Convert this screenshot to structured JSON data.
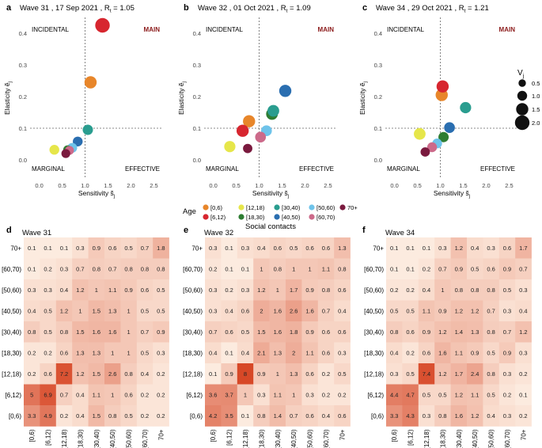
{
  "figure": {
    "social_contacts_title": "Social contacts",
    "age_legend_title": "Age",
    "size_legend_title_main": "V",
    "size_legend_title_sub": "j",
    "size_legend_values": [
      "0.5",
      "1.0",
      "1.5",
      "2.0"
    ],
    "age_groups": [
      "[0,6)",
      "[6,12)",
      "[12,18)",
      "[18,30)",
      "[30,40)",
      "[40,50)",
      "[50,60)",
      "[60,70)",
      "70+"
    ],
    "age_colors": [
      "#e8862a",
      "#d7262f",
      "#e6e64a",
      "#2e7d32",
      "#2a9d8f",
      "#2a6eb0",
      "#6ec3ea",
      "#cc6a8a",
      "#7a1a3e"
    ],
    "quadrant_labels": {
      "incidental": "INCIDENTAL",
      "main": "MAIN",
      "marginal": "MARGINAL",
      "effective": "EFFECTIVE"
    }
  },
  "chart_data": [
    {
      "type": "scatter",
      "panel_letter": "a",
      "wave_label": "Wave 31",
      "date": "17 Sep 2021",
      "r_label": "R",
      "r_sub": "t",
      "r_value": "= 1.05",
      "xlabel": "Sensitivity s̃",
      "xlabel_sub": "j",
      "ylabel": "Elasticity ẽ",
      "ylabel_sub": "j",
      "xlim": [
        -0.2,
        2.7
      ],
      "ylim": [
        -0.06,
        0.45
      ],
      "xticks": [
        "0.0",
        "0.5",
        "1.0",
        "1.5",
        "2.0",
        "2.5"
      ],
      "yticks": [
        "0.0",
        "0.1",
        "0.2",
        "0.3",
        "0.4"
      ],
      "threshold_x": 1.0,
      "threshold_y": 0.1,
      "points": [
        {
          "group": "[0,6)",
          "x": 1.12,
          "y": 0.245,
          "v": 1.5
        },
        {
          "group": "[6,12)",
          "x": 1.38,
          "y": 0.425,
          "v": 2.0
        },
        {
          "group": "[12,18)",
          "x": 0.33,
          "y": 0.032,
          "v": 1.0
        },
        {
          "group": "[18,30)",
          "x": 0.62,
          "y": 0.032,
          "v": 0.8
        },
        {
          "group": "[30,40)",
          "x": 1.06,
          "y": 0.095,
          "v": 1.1
        },
        {
          "group": "[40,50)",
          "x": 0.84,
          "y": 0.058,
          "v": 1.0
        },
        {
          "group": "[50,60)",
          "x": 0.72,
          "y": 0.038,
          "v": 1.0
        },
        {
          "group": "[60,70)",
          "x": 0.66,
          "y": 0.03,
          "v": 0.8
        },
        {
          "group": "70+",
          "x": 0.58,
          "y": 0.02,
          "v": 0.8
        }
      ]
    },
    {
      "type": "scatter",
      "panel_letter": "b",
      "wave_label": "Wave 32",
      "date": "01 Oct 2021",
      "r_label": "R",
      "r_sub": "t",
      "r_value": "= 1.09",
      "xlabel": "Sensitivity s̃",
      "xlabel_sub": "j",
      "ylabel": "Elasticity ẽ",
      "ylabel_sub": "j",
      "xlim": [
        -0.2,
        2.7
      ],
      "ylim": [
        -0.06,
        0.45
      ],
      "xticks": [
        "0.0",
        "0.5",
        "1.0",
        "1.5",
        "2.0",
        "2.5"
      ],
      "yticks": [
        "0.0",
        "0.1",
        "0.2",
        "0.3",
        "0.4"
      ],
      "threshold_x": 1.0,
      "threshold_y": 0.1,
      "points": [
        {
          "group": "[0,6)",
          "x": 0.78,
          "y": 0.122,
          "v": 1.5
        },
        {
          "group": "[6,12)",
          "x": 0.64,
          "y": 0.092,
          "v": 1.5
        },
        {
          "group": "[12,18)",
          "x": 0.36,
          "y": 0.042,
          "v": 1.3
        },
        {
          "group": "[18,30)",
          "x": 1.28,
          "y": 0.145,
          "v": 1.4
        },
        {
          "group": "[30,40)",
          "x": 1.31,
          "y": 0.155,
          "v": 1.4
        },
        {
          "group": "[40,50)",
          "x": 1.57,
          "y": 0.218,
          "v": 1.5
        },
        {
          "group": "[50,60)",
          "x": 1.16,
          "y": 0.092,
          "v": 1.2
        },
        {
          "group": "[60,70)",
          "x": 1.03,
          "y": 0.072,
          "v": 1.2
        },
        {
          "group": "70+",
          "x": 0.75,
          "y": 0.036,
          "v": 0.9
        }
      ]
    },
    {
      "type": "scatter",
      "panel_letter": "c",
      "wave_label": "Wave 34",
      "date": "29 Oct 2021",
      "r_label": "R",
      "r_sub": "t",
      "r_value": "= 1.21",
      "xlabel": "Sensitivity s̃",
      "xlabel_sub": "j",
      "ylabel": "Elasticity ẽ",
      "ylabel_sub": "j",
      "xlim": [
        -0.2,
        2.7
      ],
      "ylim": [
        -0.06,
        0.45
      ],
      "xticks": [
        "0.0",
        "0.5",
        "1.0",
        "1.5",
        "2.0",
        "2.5"
      ],
      "yticks": [
        "0.0",
        "0.1",
        "0.2",
        "0.3",
        "0.4"
      ],
      "threshold_x": 1.0,
      "threshold_y": 0.1,
      "points": [
        {
          "group": "[0,6)",
          "x": 1.03,
          "y": 0.205,
          "v": 1.5
        },
        {
          "group": "[6,12)",
          "x": 1.05,
          "y": 0.232,
          "v": 1.5
        },
        {
          "group": "[12,18)",
          "x": 0.55,
          "y": 0.082,
          "v": 1.4
        },
        {
          "group": "[18,30)",
          "x": 1.07,
          "y": 0.072,
          "v": 1.1
        },
        {
          "group": "[30,40)",
          "x": 1.55,
          "y": 0.165,
          "v": 1.3
        },
        {
          "group": "[40,50)",
          "x": 1.2,
          "y": 0.102,
          "v": 1.2
        },
        {
          "group": "[50,60)",
          "x": 0.93,
          "y": 0.052,
          "v": 1.0
        },
        {
          "group": "[60,70)",
          "x": 0.82,
          "y": 0.04,
          "v": 1.0
        },
        {
          "group": "70+",
          "x": 0.67,
          "y": 0.025,
          "v": 0.9
        }
      ]
    },
    {
      "type": "heatmap",
      "panel_letter": "d",
      "title": "Wave 31",
      "row_labels": [
        "70+",
        "[60,70)",
        "[50,60)",
        "[40,50)",
        "[30,40)",
        "[18,30)",
        "[12,18)",
        "[6,12)",
        "[0,6)"
      ],
      "col_labels": [
        "[0,6)",
        "[6,12)",
        "[12,18)",
        "[18,30)",
        "[30,40)",
        "[40,50)",
        "[50,60)",
        "[60,70)",
        "70+"
      ],
      "cells": [
        [
          "0.1",
          "0.1",
          "0.1",
          "0.3",
          "0.9",
          "0.6",
          "0.5",
          "0.7",
          "1.8"
        ],
        [
          "0.1",
          "0.2",
          "0.3",
          "0.7",
          "0.8",
          "0.7",
          "0.8",
          "0.8",
          "0.8"
        ],
        [
          "0.3",
          "0.3",
          "0.4",
          "1.2",
          "1",
          "1.1",
          "0.9",
          "0.6",
          "0.5"
        ],
        [
          "0.4",
          "0.5",
          "1.2",
          "1",
          "1.5",
          "1.3",
          "1",
          "0.5",
          "0.5"
        ],
        [
          "0.8",
          "0.5",
          "0.8",
          "1.5",
          "1.6",
          "1.6",
          "1",
          "0.7",
          "0.9"
        ],
        [
          "0.2",
          "0.2",
          "0.6",
          "1.3",
          "1.3",
          "1",
          "1",
          "0.5",
          "0.3"
        ],
        [
          "0.2",
          "0.6",
          "7.2",
          "1.2",
          "1.5",
          "2.6",
          "0.8",
          "0.4",
          "0.2"
        ],
        [
          "5",
          "6.9",
          "0.7",
          "0.4",
          "1.1",
          "1",
          "0.6",
          "0.2",
          "0.2"
        ],
        [
          "3.3",
          "4.9",
          "0.2",
          "0.4",
          "1.5",
          "0.8",
          "0.5",
          "0.2",
          "0.2"
        ]
      ]
    },
    {
      "type": "heatmap",
      "panel_letter": "e",
      "title": "Wave 32",
      "row_labels": [
        "70+",
        "[60,70)",
        "[50,60)",
        "[40,50)",
        "[30,40)",
        "[18,30)",
        "[12,18)",
        "[6,12)",
        "[0,6)"
      ],
      "col_labels": [
        "[0,6)",
        "[6,12)",
        "[12,18)",
        "[18,30)",
        "[30,40)",
        "[40,50)",
        "[50,60)",
        "[60,70)",
        "70+"
      ],
      "cells": [
        [
          "0.3",
          "0.1",
          "0.3",
          "0.4",
          "0.6",
          "0.5",
          "0.6",
          "0.6",
          "1.3"
        ],
        [
          "0.2",
          "0.1",
          "0.1",
          "1",
          "0.8",
          "1",
          "1",
          "1.1",
          "0.8"
        ],
        [
          "0.3",
          "0.2",
          "0.3",
          "1.2",
          "1",
          "1.7",
          "0.9",
          "0.8",
          "0.6"
        ],
        [
          "0.3",
          "0.4",
          "0.6",
          "2",
          "1.6",
          "2.6",
          "1.6",
          "0.7",
          "0.4"
        ],
        [
          "0.7",
          "0.6",
          "0.5",
          "1.5",
          "1.6",
          "1.8",
          "0.9",
          "0.6",
          "0.6"
        ],
        [
          "0.4",
          "0.1",
          "0.4",
          "2.1",
          "1.3",
          "2",
          "1.1",
          "0.6",
          "0.3"
        ],
        [
          "0.1",
          "0.9",
          "8",
          "0.9",
          "1",
          "1.3",
          "0.6",
          "0.2",
          "0.5"
        ],
        [
          "3.6",
          "3.7",
          "1",
          "0.3",
          "1.1",
          "1",
          "0.3",
          "0.2",
          "0.2"
        ],
        [
          "4.2",
          "3.5",
          "0.1",
          "0.8",
          "1.4",
          "0.7",
          "0.6",
          "0.4",
          "0.6"
        ]
      ]
    },
    {
      "type": "heatmap",
      "panel_letter": "f",
      "title": "Wave 34",
      "row_labels": [
        "70+",
        "[60,70)",
        "[50,60)",
        "[40,50)",
        "[30,40)",
        "[18,30)",
        "[12,18)",
        "[6,12)",
        "[0,6)"
      ],
      "col_labels": [
        "[0,6)",
        "[6,12)",
        "[12,18)",
        "[18,30)",
        "[30,40)",
        "[40,50)",
        "[50,60)",
        "[60,70)",
        "70+"
      ],
      "cells": [
        [
          "0.1",
          "0.1",
          "0.1",
          "0.3",
          "1.2",
          "0.4",
          "0.3",
          "0.6",
          "1.7"
        ],
        [
          "0.1",
          "0.1",
          "0.2",
          "0.7",
          "0.9",
          "0.5",
          "0.6",
          "0.9",
          "0.7"
        ],
        [
          "0.2",
          "0.2",
          "0.4",
          "1",
          "0.8",
          "0.8",
          "0.8",
          "0.5",
          "0.3"
        ],
        [
          "0.5",
          "0.5",
          "1.1",
          "0.9",
          "1.2",
          "1.2",
          "0.7",
          "0.3",
          "0.4"
        ],
        [
          "0.8",
          "0.6",
          "0.9",
          "1.2",
          "1.4",
          "1.3",
          "0.8",
          "0.7",
          "1.2"
        ],
        [
          "0.4",
          "0.2",
          "0.6",
          "1.6",
          "1.1",
          "0.9",
          "0.5",
          "0.9",
          "0.3"
        ],
        [
          "0.3",
          "0.5",
          "7.4",
          "1.2",
          "1.7",
          "2.4",
          "0.8",
          "0.3",
          "0.2"
        ],
        [
          "4.4",
          "4.7",
          "0.5",
          "0.5",
          "1.2",
          "1.1",
          "0.5",
          "0.2",
          "0.1"
        ],
        [
          "3.3",
          "4.3",
          "0.3",
          "0.8",
          "1.6",
          "1.2",
          "0.4",
          "0.3",
          "0.2"
        ]
      ]
    }
  ]
}
